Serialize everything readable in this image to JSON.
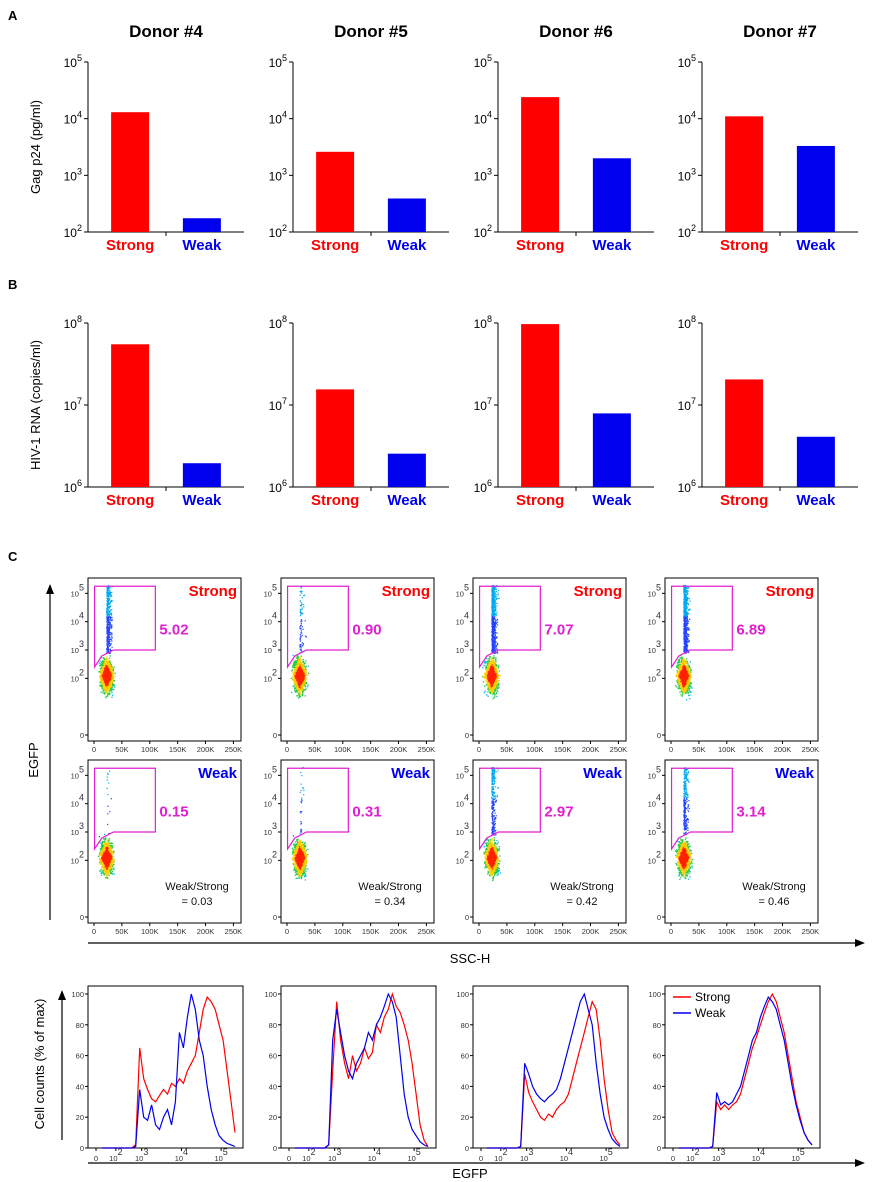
{
  "chart_data": {
    "panel_a": {
      "label": "A",
      "type": "bar",
      "ylabel": "Gag p24 (pg/ml)",
      "scale": "log",
      "ylim": [
        100,
        100000
      ],
      "yticks": [
        {
          "base": "10",
          "exp": "2"
        },
        {
          "base": "10",
          "exp": "3"
        },
        {
          "base": "10",
          "exp": "4"
        },
        {
          "base": "10",
          "exp": "5"
        }
      ],
      "categories": [
        "Strong",
        "Weak"
      ],
      "donors": [
        {
          "title": "Donor #4",
          "values": [
            13000,
            175
          ]
        },
        {
          "title": "Donor #5",
          "values": [
            2600,
            390
          ]
        },
        {
          "title": "Donor #6",
          "values": [
            24000,
            2000
          ]
        },
        {
          "title": "Donor #7",
          "values": [
            11000,
            3300
          ]
        }
      ]
    },
    "panel_b": {
      "label": "B",
      "type": "bar",
      "ylabel": "HIV-1 RNA (copies/ml)",
      "scale": "log",
      "ylim": [
        1000000,
        100000000
      ],
      "yticks": [
        {
          "base": "10",
          "exp": "6"
        },
        {
          "base": "10",
          "exp": "7"
        },
        {
          "base": "10",
          "exp": "8"
        }
      ],
      "categories": [
        "Strong",
        "Weak"
      ],
      "donors": [
        {
          "values": [
            55000000,
            1950000
          ]
        },
        {
          "values": [
            15500000,
            2550000
          ]
        },
        {
          "values": [
            97000000,
            7900000
          ]
        },
        {
          "values": [
            20500000,
            4100000
          ]
        }
      ]
    },
    "panel_c": {
      "label": "C",
      "type": "scatter",
      "xlabel": "SSC-H",
      "ylabel": "EGFP",
      "xticks": [
        "0",
        "50K",
        "100K",
        "150K",
        "200K",
        "250K"
      ],
      "yticks": [
        {
          "base": "0",
          "exp": ""
        },
        {
          "base": "10",
          "exp": "2"
        },
        {
          "base": "10",
          "exp": "3"
        },
        {
          "base": "10",
          "exp": "4"
        },
        {
          "base": "10",
          "exp": "5"
        }
      ],
      "ratio_label": "Weak/Strong",
      "donors": [
        {
          "strong_pct": "5.02",
          "weak_pct": "0.15",
          "ratio": "= 0.03"
        },
        {
          "strong_pct": "0.90",
          "weak_pct": "0.31",
          "ratio": "= 0.34"
        },
        {
          "strong_pct": "7.07",
          "weak_pct": "2.97",
          "ratio": "= 0.42"
        },
        {
          "strong_pct": "6.89",
          "weak_pct": "3.14",
          "ratio": "= 0.46"
        }
      ]
    },
    "histograms": {
      "type": "line",
      "xlabel": "EGFP",
      "ylabel": "Cell counts (% of max)",
      "xticks": [
        {
          "base": "0",
          "exp": ""
        },
        {
          "base": "10",
          "exp": "2"
        },
        {
          "base": "10",
          "exp": "3"
        },
        {
          "base": "10",
          "exp": "4"
        },
        {
          "base": "10",
          "exp": "5"
        }
      ],
      "yticks": [
        "0",
        "20",
        "40",
        "60",
        "80",
        "100"
      ],
      "ylim": [
        0,
        100
      ],
      "legend": [
        "Strong",
        "Weak"
      ],
      "x": [
        2.5,
        2.6,
        2.75,
        2.85,
        2.95,
        3.05,
        3.15,
        3.25,
        3.35,
        3.45,
        3.55,
        3.65,
        3.75,
        3.85,
        3.95,
        4.05,
        4.15,
        4.25,
        4.35,
        4.45,
        4.55,
        4.65,
        4.75,
        4.85,
        4.95,
        5.05,
        5.15,
        5.25,
        5.35
      ],
      "donors": [
        {
          "strong": [
            0,
            0,
            0,
            2,
            65,
            45,
            38,
            32,
            30,
            34,
            38,
            35,
            42,
            40,
            45,
            42,
            50,
            55,
            60,
            75,
            90,
            98,
            95,
            90,
            80,
            70,
            50,
            30,
            10
          ],
          "weak": [
            0,
            0,
            0,
            1,
            38,
            20,
            18,
            28,
            15,
            12,
            20,
            25,
            15,
            30,
            75,
            65,
            85,
            100,
            90,
            70,
            60,
            40,
            25,
            15,
            8,
            5,
            3,
            2,
            1
          ]
        },
        {
          "strong": [
            0,
            0,
            0,
            2,
            50,
            95,
            70,
            55,
            45,
            60,
            50,
            55,
            65,
            58,
            62,
            80,
            75,
            85,
            90,
            100,
            92,
            88,
            80,
            70,
            55,
            35,
            15,
            5,
            1
          ],
          "weak": [
            0,
            0,
            0,
            2,
            70,
            90,
            75,
            60,
            50,
            45,
            55,
            60,
            65,
            75,
            70,
            80,
            85,
            92,
            100,
            95,
            85,
            60,
            35,
            20,
            12,
            8,
            4,
            2,
            1
          ]
        },
        {
          "strong": [
            0,
            0,
            0,
            1,
            48,
            36,
            30,
            25,
            20,
            18,
            22,
            20,
            25,
            28,
            30,
            35,
            45,
            55,
            65,
            75,
            85,
            95,
            90,
            70,
            45,
            25,
            10,
            5,
            2
          ],
          "weak": [
            0,
            0,
            0,
            1,
            55,
            48,
            40,
            35,
            32,
            30,
            33,
            35,
            38,
            45,
            55,
            65,
            75,
            85,
            95,
            100,
            90,
            80,
            55,
            35,
            20,
            12,
            6,
            3,
            1
          ]
        },
        {
          "strong": [
            0,
            0,
            0,
            1,
            30,
            25,
            28,
            25,
            28,
            30,
            35,
            45,
            55,
            65,
            72,
            80,
            88,
            95,
            100,
            95,
            85,
            75,
            60,
            45,
            30,
            20,
            10,
            5,
            2
          ],
          "weak": [
            0,
            0,
            0,
            1,
            36,
            28,
            30,
            28,
            30,
            35,
            40,
            50,
            60,
            70,
            75,
            85,
            92,
            98,
            95,
            90,
            80,
            70,
            55,
            40,
            28,
            18,
            10,
            5,
            2
          ]
        }
      ]
    }
  },
  "colors": {
    "strong": "#ff0000",
    "weak": "#0000ee",
    "gate": "#e020d0",
    "axis": "#000000"
  }
}
